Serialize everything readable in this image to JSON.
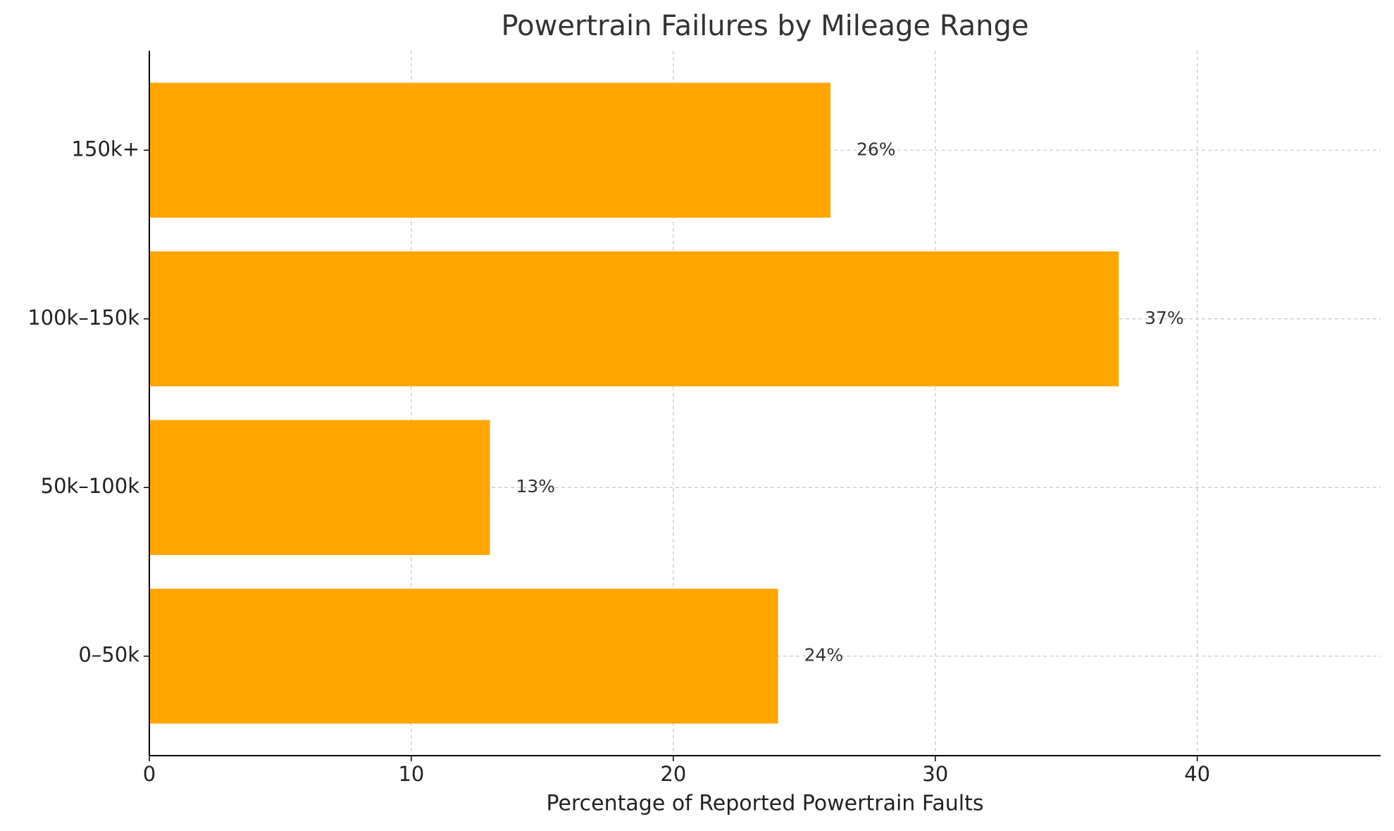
{
  "chart_data": {
    "type": "bar",
    "orientation": "horizontal",
    "title": "Powertrain Failures by Mileage Range",
    "xlabel": "Percentage of Reported Powertrain Faults",
    "categories": [
      "0–50k",
      "50k–100k",
      "100k–150k",
      "150k+"
    ],
    "values": [
      24,
      13,
      37,
      26
    ],
    "value_labels": [
      "24%",
      "13%",
      "37%",
      "26%"
    ],
    "color": "#FFA500",
    "xlim": [
      0,
      47
    ],
    "xticks": [
      0,
      10,
      20,
      30,
      40
    ],
    "grid": true
  }
}
